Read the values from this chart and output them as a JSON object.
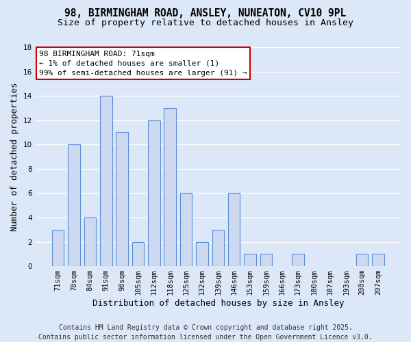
{
  "title": "98, BIRMINGHAM ROAD, ANSLEY, NUNEATON, CV10 9PL",
  "subtitle": "Size of property relative to detached houses in Ansley",
  "xlabel": "Distribution of detached houses by size in Ansley",
  "ylabel": "Number of detached properties",
  "categories": [
    "71sqm",
    "78sqm",
    "84sqm",
    "91sqm",
    "98sqm",
    "105sqm",
    "112sqm",
    "118sqm",
    "125sqm",
    "132sqm",
    "139sqm",
    "146sqm",
    "153sqm",
    "159sqm",
    "166sqm",
    "173sqm",
    "180sqm",
    "187sqm",
    "193sqm",
    "200sqm",
    "207sqm"
  ],
  "values": [
    3,
    10,
    4,
    14,
    11,
    2,
    12,
    13,
    6,
    2,
    3,
    6,
    1,
    1,
    0,
    1,
    0,
    0,
    0,
    1,
    1
  ],
  "bar_color": "#ccd9f0",
  "bar_edge_color": "#5b8dd9",
  "ylim": [
    0,
    18
  ],
  "yticks": [
    0,
    2,
    4,
    6,
    8,
    10,
    12,
    14,
    16,
    18
  ],
  "annotation_line1": "98 BIRMINGHAM ROAD: 71sqm",
  "annotation_line2": "← 1% of detached houses are smaller (1)",
  "annotation_line3": "99% of semi-detached houses are larger (91) →",
  "annotation_box_color": "#ffffff",
  "annotation_box_edge_color": "#cc0000",
  "bg_color": "#dce8f8",
  "plot_bg_color": "#dce8f8",
  "grid_color": "#ffffff",
  "footer_line1": "Contains HM Land Registry data © Crown copyright and database right 2025.",
  "footer_line2": "Contains public sector information licensed under the Open Government Licence v3.0.",
  "title_fontsize": 10.5,
  "subtitle_fontsize": 9.5,
  "axis_label_fontsize": 9,
  "tick_fontsize": 7.5,
  "annotation_fontsize": 8,
  "footer_fontsize": 7
}
